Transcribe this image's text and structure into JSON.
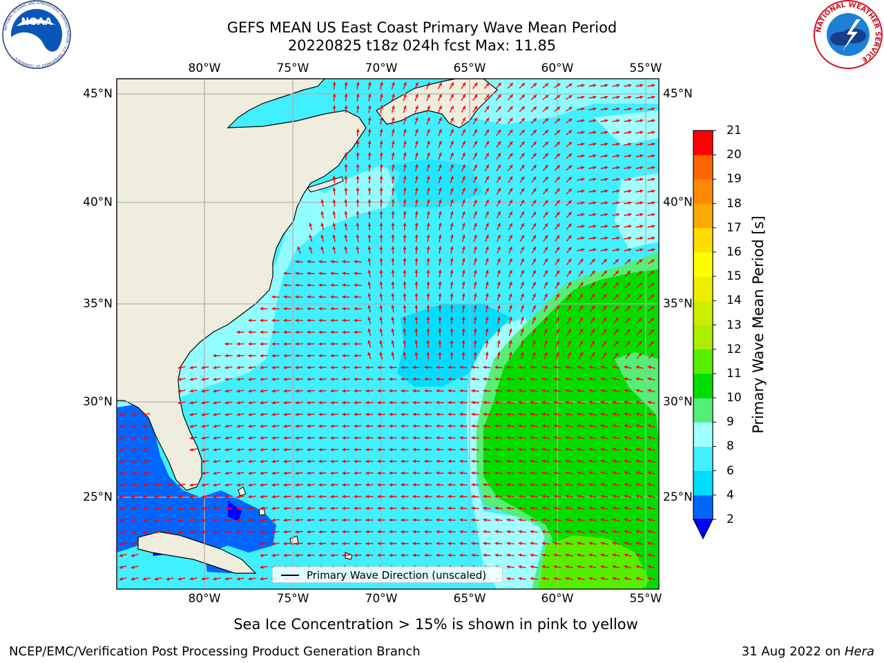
{
  "header": {
    "title_line1": "GEFS MEAN US East Coast Primary Wave Mean Period",
    "title_line2": "20220825 t18z 024h fcst   Max: 11.85"
  },
  "logos": {
    "left": "noaa-logo",
    "right": "nws-logo",
    "left_text": "NOAA",
    "left_ring_text": "NATIONAL OCEANIC AND ATMOSPHERIC ADMINISTRATION · U.S. DEPARTMENT OF COMMERCE",
    "right_ring_text": "NATIONAL WEATHER SERVICE"
  },
  "map": {
    "lon_labels": [
      "80°W",
      "75°W",
      "70°W",
      "65°W",
      "60°W",
      "55°W"
    ],
    "lat_labels": [
      "45°N",
      "40°N",
      "35°N",
      "30°N",
      "25°N"
    ],
    "land_color": "#efedde",
    "grid_color": "#b0b0b0",
    "arrow_color": "#ff0000",
    "legend_label": "Primary Wave Direction (unscaled)"
  },
  "colorbar": {
    "title": "Primary Wave Mean Period [s]",
    "tick_labels": [
      "2",
      "4",
      "6",
      "8",
      "9",
      "10",
      "11",
      "12",
      "13",
      "14",
      "15",
      "16",
      "17",
      "18",
      "19",
      "20",
      "21"
    ],
    "colors": [
      "#0066ff",
      "#00ddff",
      "#40f0ff",
      "#a0ffff",
      "#55ee77",
      "#00dd00",
      "#55ee00",
      "#aaee00",
      "#ccee00",
      "#eeee00",
      "#ffff00",
      "#ffdd00",
      "#ffaa00",
      "#ff8800",
      "#ff6600",
      "#ff3300",
      "#ff0000"
    ],
    "underflow_color": "#0000ff"
  },
  "subnote": "Sea Ice Concentration > 15% is shown in pink to yellow",
  "footer": {
    "left": "NCEP/EMC/Verification Post Processing Product Generation Branch",
    "right_date": "31 Aug 2022 on ",
    "right_host": "Hera"
  }
}
